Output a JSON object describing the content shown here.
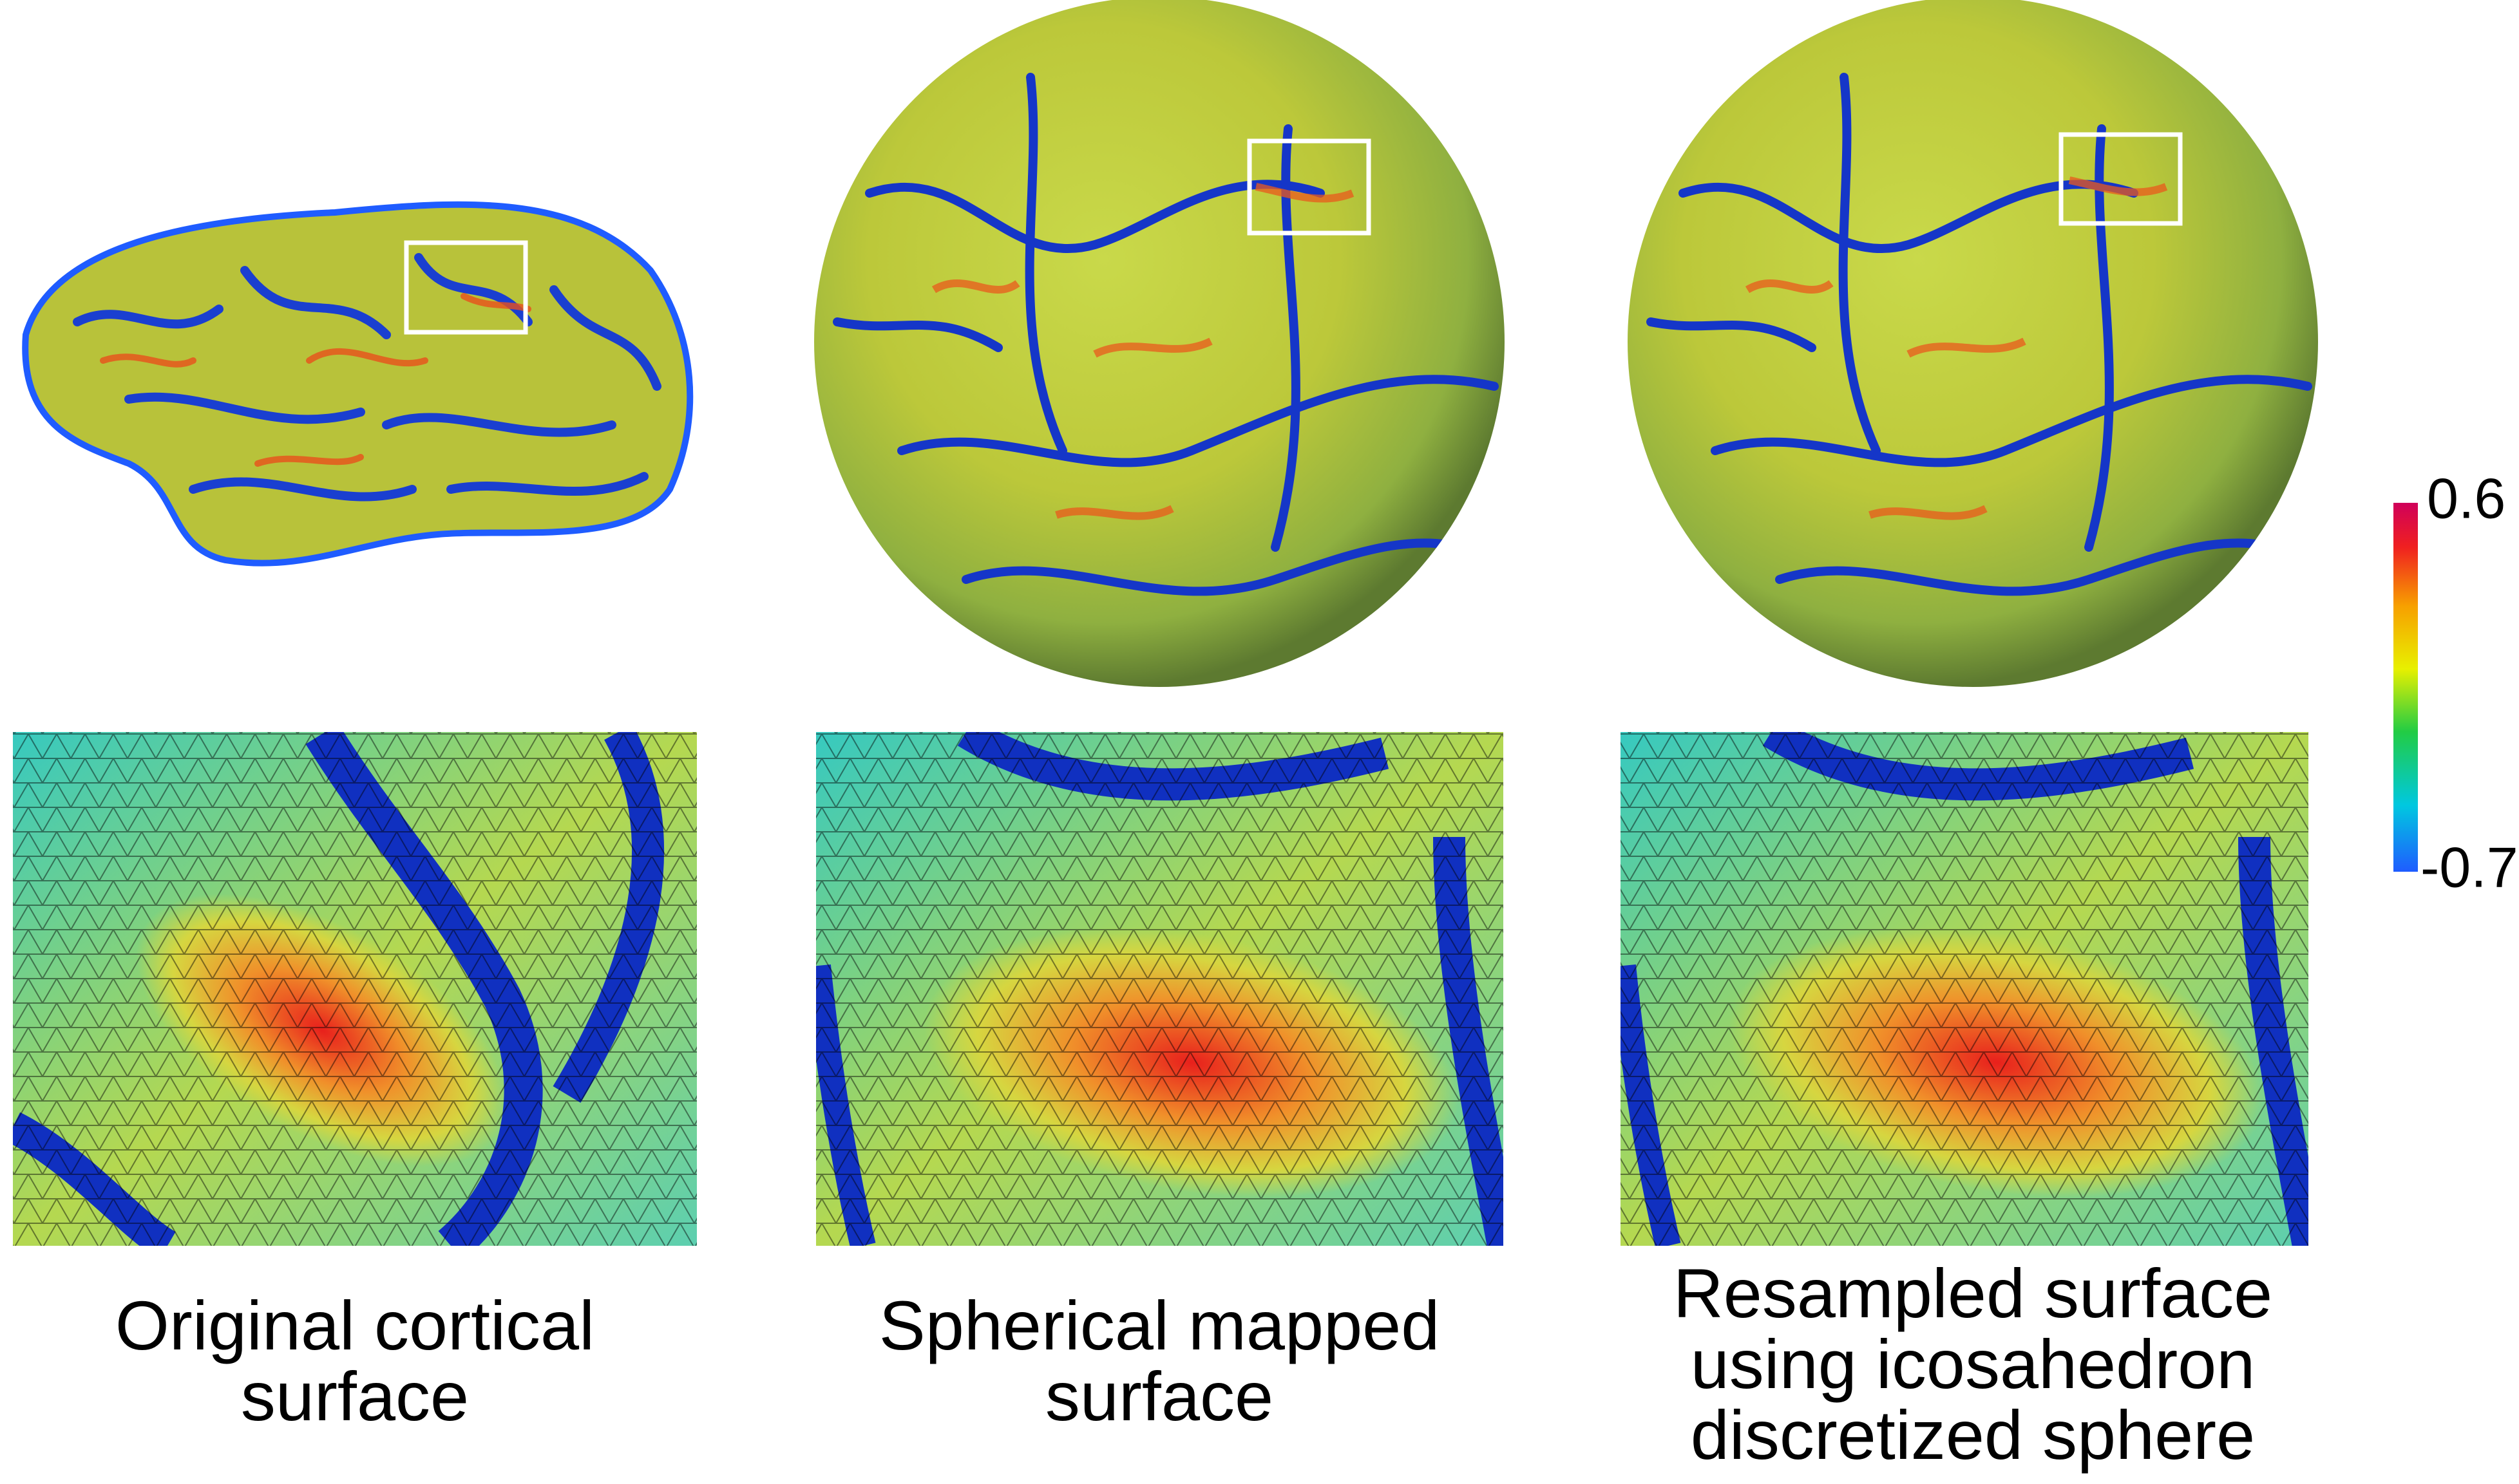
{
  "captions": [
    {
      "lines": [
        "Original cortical",
        "surface"
      ]
    },
    {
      "lines": [
        "Spherical mapped",
        "surface"
      ]
    },
    {
      "lines": [
        "Resampled surface",
        "using icosahedron",
        "discretized sphere"
      ]
    }
  ],
  "colorbar": {
    "max": 0.6,
    "min": -0.7
  }
}
